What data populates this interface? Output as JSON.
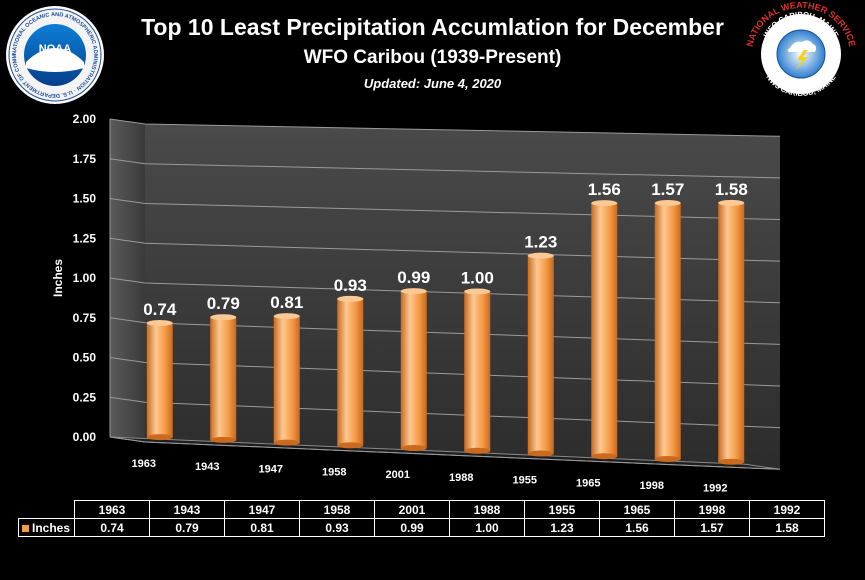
{
  "header": {
    "title": "Top 10 Least Precipitation Accumlation for December",
    "subtitle": "WFO Caribou (1939-Present)",
    "updated": "Updated:  June 4, 2020"
  },
  "logos": {
    "noaa": {
      "center_text": "NOAA",
      "ring_text": "NATIONAL OCEANIC AND ATMOSPHERIC ADMINISTRATION · U.S. DEPARTMENT OF COMMERCE ·",
      "colors": {
        "outer": "#ffffff",
        "ring": "#1f4f9a",
        "center": "#0a64b4"
      }
    },
    "nws": {
      "ring_top": "WFO CARIBOU, MAINE",
      "ring_mid": "NATIONAL WEATHER SERVICE",
      "ring_bottom": "NWS CARIBOU, MAINE",
      "colors": {
        "ring_text": "#e0302a",
        "center": "#2f7fd0"
      }
    }
  },
  "chart_data": {
    "type": "bar",
    "categories": [
      "1963",
      "1943",
      "1947",
      "1958",
      "2001",
      "1988",
      "1955",
      "1965",
      "1998",
      "1992"
    ],
    "series": [
      {
        "name": "Inches",
        "values": [
          0.74,
          0.79,
          0.81,
          0.93,
          0.99,
          1.0,
          1.23,
          1.56,
          1.57,
          1.58
        ]
      }
    ],
    "data_labels": [
      "0.74",
      "0.79",
      "0.81",
      "0.93",
      "0.99",
      "1.00",
      "1.23",
      "1.56",
      "1.57",
      "1.58"
    ],
    "table_header": [
      "1963",
      "1943",
      "1947",
      "1958",
      "2001",
      "1988",
      "1955",
      "1965",
      "1998",
      "1992"
    ],
    "table_values": [
      "0.74",
      "0.79",
      "0.81",
      "0.93",
      "0.99",
      "1.00",
      "1.23",
      "1.56",
      "1.57",
      "1.58"
    ],
    "table_series_label": "Inches",
    "ylabel": "Inches",
    "ylim": [
      0,
      2
    ],
    "y_ticks": [
      "0.00",
      "0.25",
      "0.50",
      "0.75",
      "1.00",
      "1.25",
      "1.50",
      "1.75",
      "2.00"
    ],
    "grid": true,
    "legend": "data-table",
    "colors": {
      "bar": "#f59b45",
      "bar_dark": "#c96a1f",
      "bar_light": "#fcc893",
      "panel": "#3a3a3a"
    }
  }
}
